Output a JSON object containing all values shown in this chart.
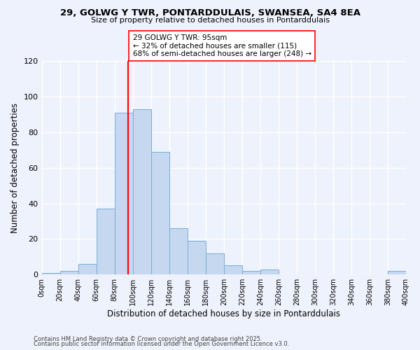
{
  "title1": "29, GOLWG Y TWR, PONTARDDULAIS, SWANSEA, SA4 8EA",
  "title2": "Size of property relative to detached houses in Pontarddulais",
  "xlabel": "Distribution of detached houses by size in Pontarddulais",
  "ylabel": "Number of detached properties",
  "bar_color": "#c5d8f0",
  "bar_edgecolor": "#7aadd4",
  "bin_edges": [
    0,
    20,
    40,
    60,
    80,
    100,
    120,
    140,
    160,
    180,
    200,
    220,
    240,
    260,
    280,
    300,
    320,
    340,
    360,
    380,
    400
  ],
  "bar_heights": [
    1,
    2,
    6,
    37,
    91,
    93,
    69,
    26,
    19,
    12,
    5,
    2,
    3,
    0,
    0,
    0,
    0,
    0,
    0,
    2
  ],
  "tick_labels": [
    "0sqm",
    "20sqm",
    "40sqm",
    "60sqm",
    "80sqm",
    "100sqm",
    "120sqm",
    "140sqm",
    "160sqm",
    "180sqm",
    "200sqm",
    "220sqm",
    "240sqm",
    "260sqm",
    "280sqm",
    "300sqm",
    "320sqm",
    "340sqm",
    "360sqm",
    "380sqm",
    "400sqm"
  ],
  "vline_x": 95,
  "vline_color": "red",
  "annotation_title": "29 GOLWG Y TWR: 95sqm",
  "annotation_line1": "← 32% of detached houses are smaller (115)",
  "annotation_line2": "68% of semi-detached houses are larger (248) →",
  "annotation_box_color": "white",
  "annotation_box_edgecolor": "red",
  "ylim": [
    0,
    120
  ],
  "yticks": [
    0,
    20,
    40,
    60,
    80,
    100,
    120
  ],
  "background_color": "#eef2fc",
  "footer1": "Contains HM Land Registry data © Crown copyright and database right 2025.",
  "footer2": "Contains public sector information licensed under the Open Government Licence v3.0."
}
